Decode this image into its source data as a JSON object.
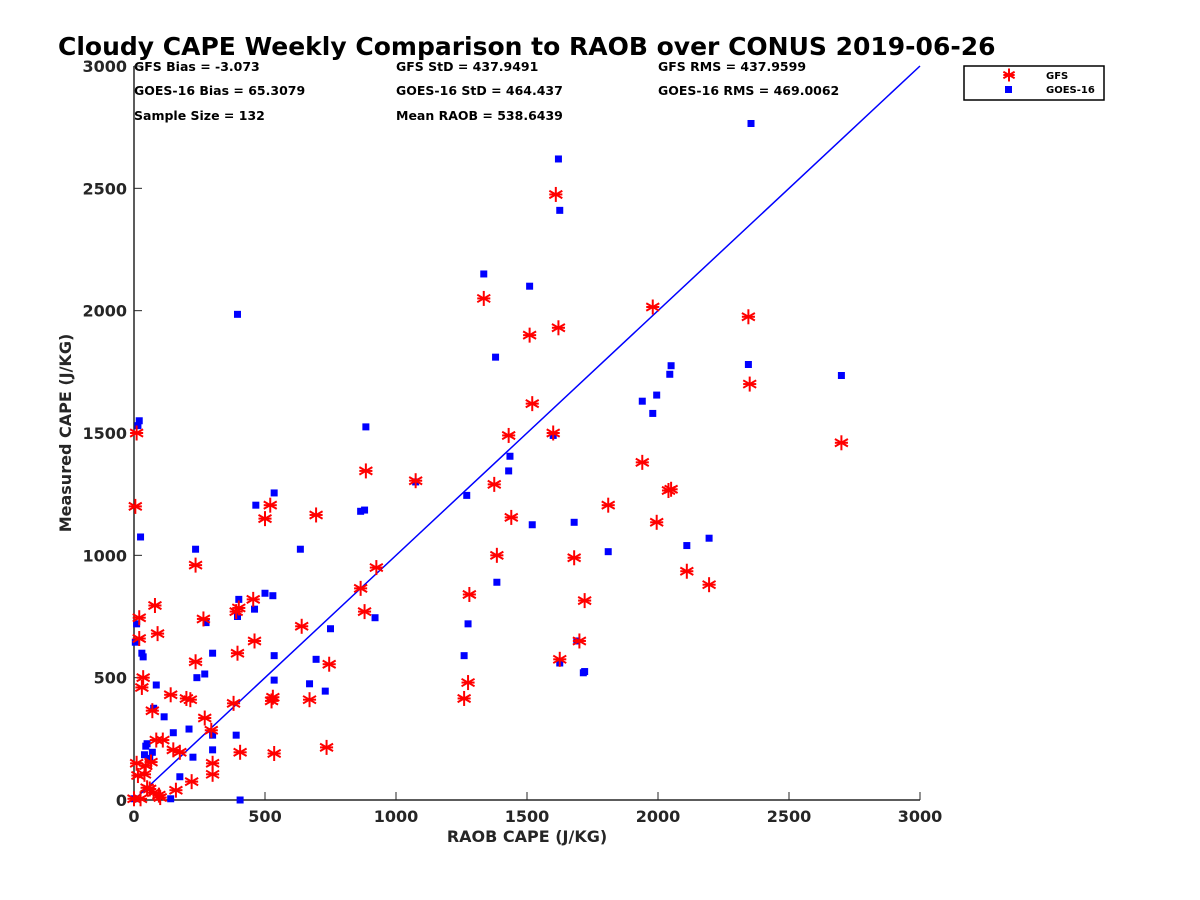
{
  "chart_data": {
    "type": "scatter",
    "title": "Cloudy CAPE Weekly Comparison to RAOB over CONUS 2019-06-26",
    "xlabel": "RAOB CAPE (J/KG)",
    "ylabel": "Measured CAPE (J/KG)",
    "xlim": [
      0,
      3000
    ],
    "ylim": [
      0,
      3000
    ],
    "xticks": [
      0,
      500,
      1000,
      1500,
      2000,
      2500,
      3000
    ],
    "yticks": [
      0,
      500,
      1000,
      1500,
      2000,
      2500,
      3000
    ],
    "grid": false,
    "legend_position": "top-right, outside plot area",
    "reference_line": {
      "x": [
        0,
        3000
      ],
      "y": [
        0,
        3000
      ],
      "color": "#0000ff"
    },
    "stats": [
      "GFS Bias = -3.073",
      "GFS StD = 437.9491",
      "GFS RMS = 437.9599",
      "GOES-16 Bias = 65.3079",
      "GOES-16 StD = 464.437",
      "GOES-16 RMS = 469.0062",
      "Sample Size = 132",
      "Mean RAOB = 538.6439"
    ],
    "series": [
      {
        "name": "GFS",
        "marker": "asterisk",
        "color": "#ff0000",
        "x": [
          2700,
          2350,
          2345,
          2195,
          2110,
          2050,
          2040,
          1995,
          1980,
          1940,
          1810,
          1720,
          1700,
          1680,
          1625,
          1620,
          1610,
          1600,
          1520,
          1510,
          1440,
          1430,
          1385,
          1375,
          1335,
          1280,
          1275,
          1260,
          1075,
          925,
          885,
          880,
          865,
          735,
          745,
          695,
          670,
          640,
          535,
          530,
          525,
          520,
          500,
          460,
          455,
          405,
          400,
          395,
          390,
          380,
          300,
          300,
          295,
          270,
          265,
          235,
          235,
          220,
          215,
          200,
          175,
          160,
          150,
          140,
          110,
          100,
          95,
          90,
          85,
          80,
          75,
          70,
          65,
          60,
          50,
          45,
          40,
          35,
          30,
          25,
          20,
          20,
          15,
          10,
          10,
          5,
          0
        ],
        "y": [
          1460,
          1700,
          1975,
          880,
          935,
          1270,
          1265,
          1135,
          2015,
          1380,
          1205,
          815,
          650,
          990,
          575,
          1930,
          2475,
          1500,
          1620,
          1900,
          1155,
          1490,
          1000,
          1290,
          2050,
          840,
          480,
          415,
          1305,
          950,
          1345,
          770,
          865,
          215,
          555,
          1165,
          410,
          710,
          190,
          420,
          405,
          1205,
          1150,
          650,
          820,
          195,
          785,
          600,
          770,
          395,
          150,
          105,
          285,
          335,
          740,
          960,
          565,
          75,
          410,
          415,
          195,
          40,
          205,
          430,
          245,
          10,
          20,
          680,
          245,
          795,
          30,
          365,
          155,
          45,
          50,
          140,
          105,
          500,
          460,
          5,
          660,
          745,
          100,
          1500,
          150,
          1200,
          5
        ]
      },
      {
        "name": "GOES-16",
        "marker": "square",
        "color": "#0000ff",
        "x": [
          2355,
          1620,
          1625,
          1335,
          1510,
          1380,
          2700,
          2345,
          2050,
          2045,
          1995,
          1980,
          1940,
          1600,
          885,
          880,
          865,
          1435,
          1430,
          1075,
          1270,
          1520,
          1680,
          2195,
          2110,
          1810,
          1715,
          1690,
          1625,
          635,
          500,
          530,
          395,
          235,
          1385,
          535,
          460,
          400,
          395,
          920,
          750,
          695,
          670,
          730,
          1275,
          1260,
          1720,
          465,
          405,
          270,
          300,
          240,
          535,
          535,
          300,
          275,
          390,
          300,
          210,
          225,
          175,
          140,
          150,
          115,
          85,
          75,
          70,
          60,
          50,
          45,
          40,
          35,
          30,
          25,
          20,
          15,
          10,
          5,
          0
        ],
        "y": [
          2765,
          2620,
          2410,
          2150,
          2100,
          1810,
          1735,
          1780,
          1775,
          1740,
          1655,
          1580,
          1630,
          1490,
          1525,
          1185,
          1180,
          1405,
          1345,
          1300,
          1245,
          1125,
          1135,
          1070,
          1040,
          1015,
          520,
          650,
          560,
          1025,
          845,
          835,
          1985,
          1025,
          890,
          590,
          780,
          820,
          750,
          745,
          700,
          575,
          475,
          445,
          720,
          590,
          525,
          1205,
          0,
          515,
          600,
          500,
          1255,
          490,
          205,
          725,
          265,
          265,
          290,
          175,
          95,
          5,
          275,
          340,
          470,
          375,
          195,
          170,
          230,
          220,
          185,
          585,
          600,
          1075,
          1550,
          1530,
          720,
          645,
          5
        ]
      }
    ]
  }
}
